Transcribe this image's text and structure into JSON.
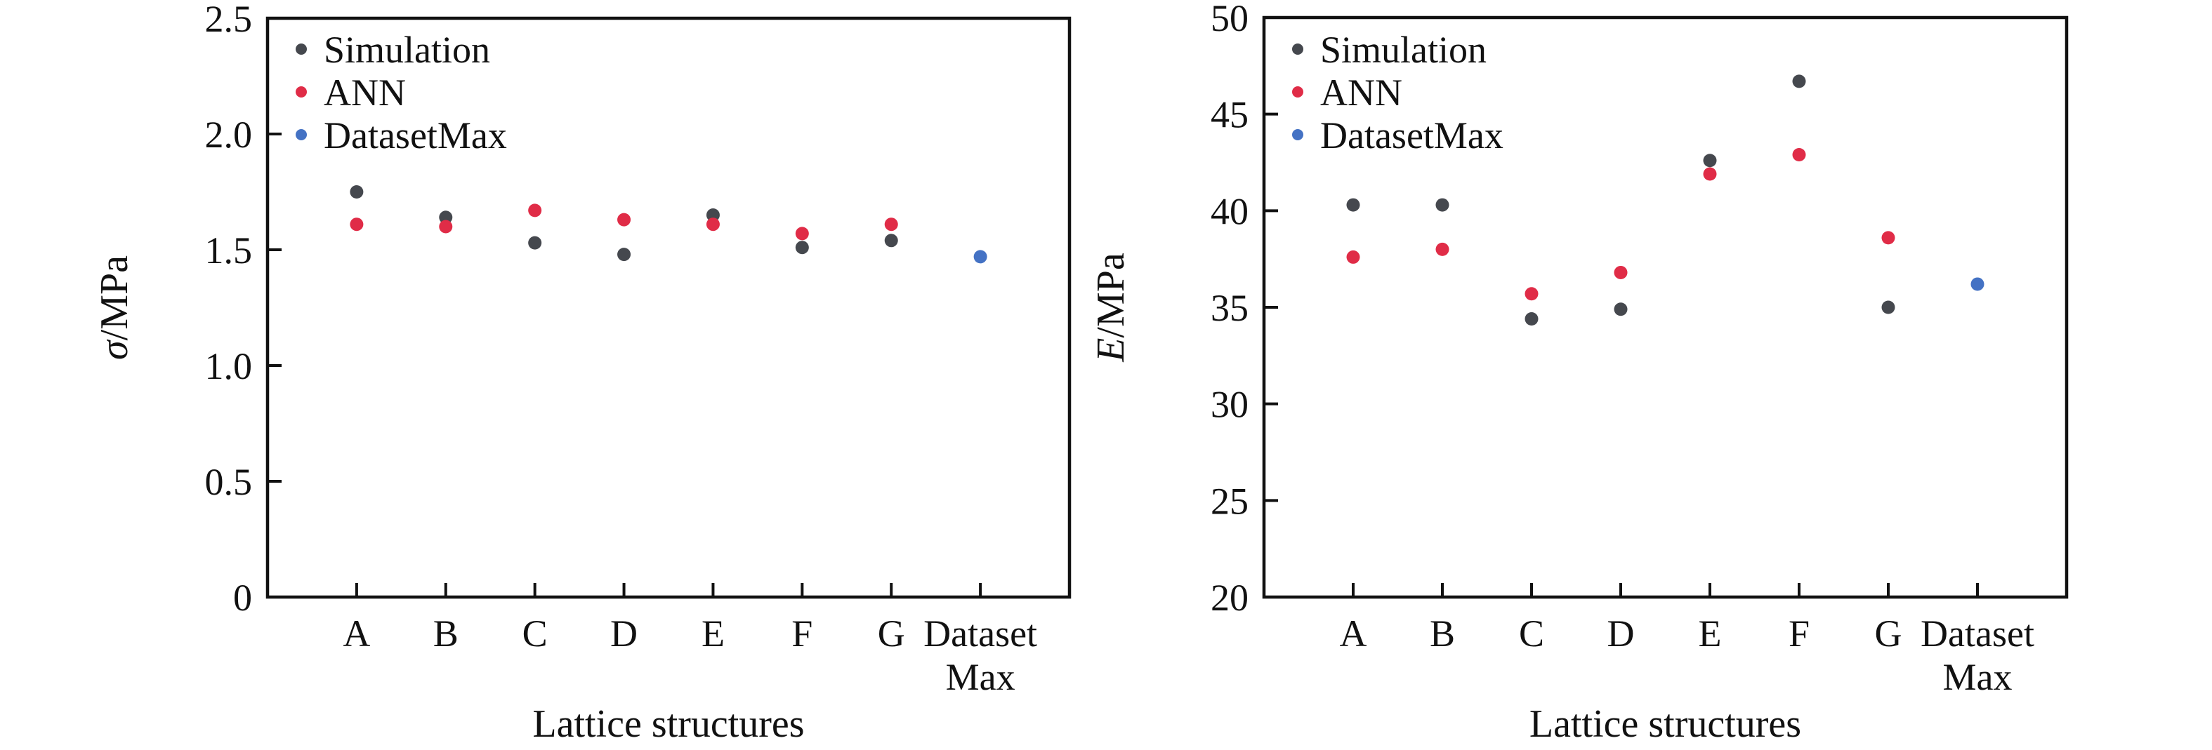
{
  "figure": {
    "background": "#ffffff",
    "axis_color": "#111111",
    "legend_labels": [
      "Simulation",
      "ANN",
      "DatasetMax"
    ],
    "series_colors": {
      "Simulation": "#45484e",
      "ANN": "#e02c47",
      "DatasetMax": "#4472c4"
    }
  },
  "chart_data": [
    {
      "type": "scatter",
      "panel": "left",
      "title": "",
      "xlabel": "Lattice structures",
      "ylabel_italic": "σ",
      "ylabel_rest": "/MPa",
      "categories": [
        "A",
        "B",
        "C",
        "D",
        "E",
        "F",
        "G",
        "Dataset Max"
      ],
      "ylim": [
        0,
        2.5
      ],
      "yticks": [
        0,
        0.5,
        1.0,
        1.5,
        2.0,
        2.5
      ],
      "ytick_labels": [
        "0",
        "0.5",
        "1.0",
        "1.5",
        "2.0",
        "2.5"
      ],
      "grid": false,
      "legend_position": "upper-left",
      "legend": [
        "Simulation",
        "ANN",
        "DatasetMax"
      ],
      "series": [
        {
          "name": "Simulation",
          "color": "#45484e",
          "values": [
            1.75,
            1.64,
            1.53,
            1.48,
            1.65,
            1.51,
            1.54,
            null
          ]
        },
        {
          "name": "ANN",
          "color": "#e02c47",
          "values": [
            1.61,
            1.6,
            1.67,
            1.63,
            1.61,
            1.57,
            1.61,
            null
          ]
        },
        {
          "name": "DatasetMax",
          "color": "#4472c4",
          "values": [
            null,
            null,
            null,
            null,
            null,
            null,
            null,
            1.47
          ]
        }
      ]
    },
    {
      "type": "scatter",
      "panel": "right",
      "title": "",
      "xlabel": "Lattice structures",
      "ylabel_italic": "E",
      "ylabel_rest": "/MPa",
      "categories": [
        "A",
        "B",
        "C",
        "D",
        "E",
        "F",
        "G",
        "Dataset Max"
      ],
      "ylim": [
        20,
        50
      ],
      "yticks": [
        20,
        25,
        30,
        35,
        40,
        45,
        50
      ],
      "ytick_labels": [
        "20",
        "25",
        "30",
        "35",
        "40",
        "45",
        "50"
      ],
      "grid": false,
      "legend_position": "upper-left",
      "legend": [
        "Simulation",
        "ANN",
        "DatasetMax"
      ],
      "series": [
        {
          "name": "Simulation",
          "color": "#45484e",
          "values": [
            40.3,
            40.3,
            34.4,
            34.9,
            42.6,
            46.7,
            35.0,
            null
          ]
        },
        {
          "name": "ANN",
          "color": "#e02c47",
          "values": [
            37.6,
            38.0,
            35.7,
            36.8,
            41.9,
            42.9,
            38.6,
            null
          ]
        },
        {
          "name": "DatasetMax",
          "color": "#4472c4",
          "values": [
            null,
            null,
            null,
            null,
            null,
            null,
            null,
            36.2
          ]
        }
      ]
    }
  ]
}
